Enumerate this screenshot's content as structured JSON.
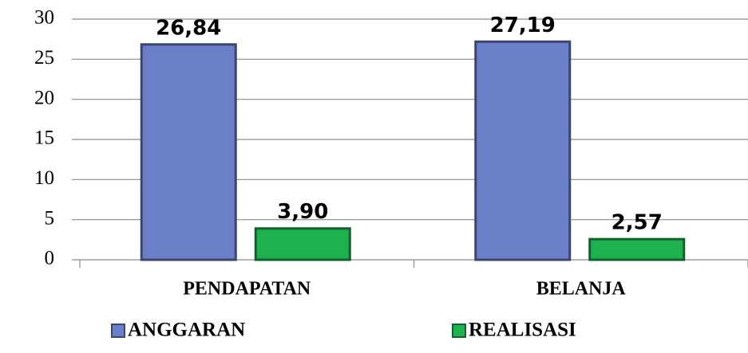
{
  "chart_data": {
    "type": "bar",
    "categories": [
      "PENDAPATAN",
      "BELANJA"
    ],
    "series": [
      {
        "name": "ANGGARAN",
        "color": "#6b7fc9",
        "values": [
          26.84,
          27.19
        ],
        "value_labels": [
          "26,84",
          "27,19"
        ]
      },
      {
        "name": "REALISASI",
        "color": "#1fb050",
        "values": [
          3.9,
          2.57
        ],
        "value_labels": [
          "3,90",
          "2,57"
        ]
      }
    ],
    "ylim": [
      0,
      30
    ],
    "yticks": [
      0,
      5,
      10,
      15,
      20,
      25,
      30
    ],
    "grid": true
  }
}
